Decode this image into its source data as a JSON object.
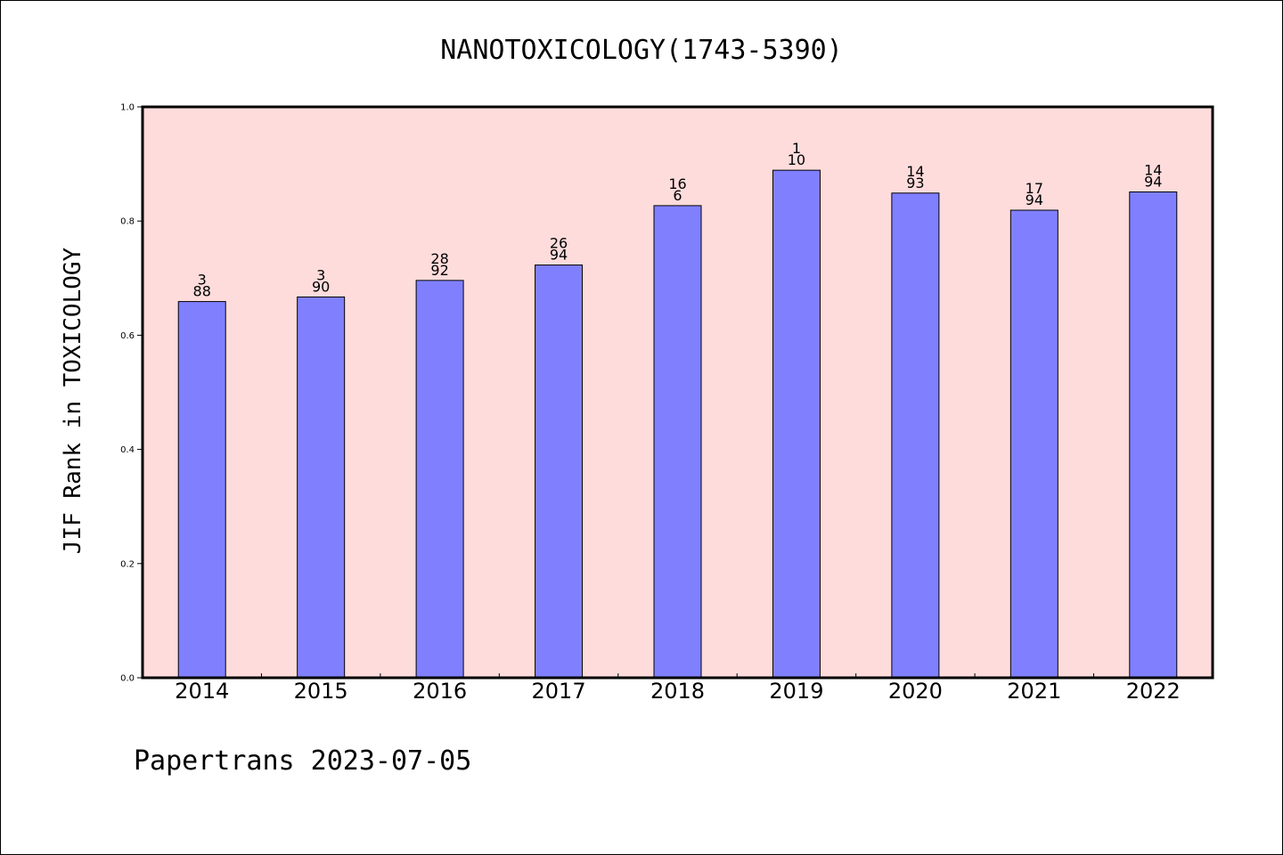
{
  "chart_data": {
    "type": "bar",
    "title": "NANOTOXICOLOGY(1743-5390)",
    "xlabel": "",
    "ylabel": "JIF Rank in TOXICOLOGY",
    "ylim": [
      0,
      1.0
    ],
    "yticks": [
      "0.0",
      "0.2",
      "0.4",
      "0.6",
      "0.8",
      "1.0"
    ],
    "grid": false,
    "categories": [
      "2014",
      "2015",
      "2016",
      "2017",
      "2018",
      "2019",
      "2020",
      "2021",
      "2022"
    ],
    "values": [
      0.659,
      0.667,
      0.696,
      0.723,
      0.827,
      0.889,
      0.849,
      0.819,
      0.851
    ],
    "labels": [
      [
        "3",
        "88"
      ],
      [
        "3",
        "90"
      ],
      [
        "28",
        "92"
      ],
      [
        "26",
        "94"
      ],
      [
        "16",
        "6"
      ],
      [
        "1",
        "10"
      ],
      [
        "14",
        "93"
      ],
      [
        "17",
        "94"
      ],
      [
        "14",
        "94"
      ]
    ],
    "colors": {
      "bar": "#8080ff",
      "plot_background": "#ffdcdc",
      "axis": "#000000"
    }
  },
  "footer": "Papertrans 2023-07-05"
}
